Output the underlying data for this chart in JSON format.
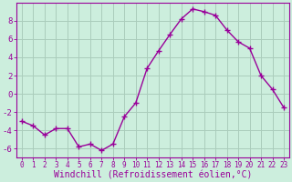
{
  "x": [
    0,
    1,
    2,
    3,
    4,
    5,
    6,
    7,
    8,
    9,
    10,
    11,
    12,
    13,
    14,
    15,
    16,
    17,
    18,
    19,
    20,
    21,
    22,
    23
  ],
  "y": [
    -3.0,
    -3.5,
    -4.5,
    -3.8,
    -3.8,
    -5.8,
    -5.5,
    -6.2,
    -5.5,
    -2.5,
    -1.0,
    2.8,
    4.7,
    6.5,
    8.2,
    9.3,
    9.0,
    8.6,
    7.0,
    5.7,
    5.0,
    2.0,
    0.5,
    -1.5
  ],
  "line_color": "#990099",
  "marker": "+",
  "marker_size": 4,
  "marker_lw": 1.0,
  "bg_color": "#cceedd",
  "grid_color": "#aaccbb",
  "xlabel": "Windchill (Refroidissement éolien,°C)",
  "xlabel_color": "#990099",
  "tick_color": "#990099",
  "ylim": [
    -7,
    10
  ],
  "yticks": [
    -6,
    -4,
    -2,
    0,
    2,
    4,
    6,
    8
  ],
  "xlim": [
    -0.5,
    23.5
  ],
  "xtick_fontsize": 5.5,
  "ytick_fontsize": 6.5,
  "xlabel_fontsize": 7.0,
  "linewidth": 1.0
}
